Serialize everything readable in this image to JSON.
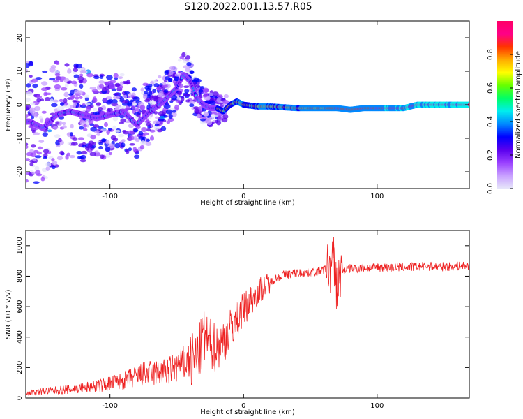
{
  "title": "S120.2022.001.13.57.R05",
  "colors": {
    "snr_line": "#ee2222",
    "axis": "#000000",
    "colorbar_stops": [
      "#e6e6fa",
      "#c8a0ff",
      "#9a40ff",
      "#5a00ee",
      "#0000ff",
      "#0088ff",
      "#00eeee",
      "#00ff66",
      "#66ff00",
      "#ffff00",
      "#ffaa00",
      "#ff3300",
      "#ff0088",
      "#ff0066"
    ]
  },
  "chart_data": [
    {
      "type": "heatmap",
      "title": "",
      "xlabel": "Height of straight line (km)",
      "ylabel": "Frequency (Hz)",
      "xlim": [
        -163,
        169
      ],
      "ylim": [
        -25,
        25
      ],
      "x_ticks": [
        -100,
        0,
        100
      ],
      "y_ticks": [
        -20,
        -10,
        0,
        10,
        20
      ],
      "colorbar": {
        "label": "Normalized spectral amplitude",
        "range": [
          0,
          1
        ],
        "ticks": [
          "0.0",
          "0.2",
          "0.4",
          "0.6",
          "0.8"
        ]
      },
      "ridge": {
        "x": [
          -160,
          -150,
          -140,
          -130,
          -120,
          -110,
          -100,
          -90,
          -80,
          -75,
          -70,
          -60,
          -50,
          -45,
          -40,
          -35,
          -30,
          -25,
          -20,
          -15,
          -10,
          -5,
          0,
          10,
          20,
          40,
          60,
          70,
          80,
          90,
          100,
          110,
          120,
          130,
          140,
          150,
          160,
          168
        ],
        "y": [
          -5,
          -7,
          -3,
          -2,
          -3,
          -4,
          -3,
          -2,
          -6,
          -4,
          -2,
          1,
          5,
          9,
          7,
          2,
          0,
          -1,
          -1,
          -2,
          0,
          1,
          0,
          -0.5,
          -0.5,
          -1,
          -1,
          -1,
          -1.5,
          -1,
          -1,
          -1,
          -1,
          0,
          0,
          0,
          0,
          0
        ]
      }
    },
    {
      "type": "line",
      "title": "",
      "xlabel": "Height of straight line (km)",
      "ylabel": "SNR (10 * v/v)",
      "xlim": [
        -163,
        169
      ],
      "ylim": [
        0,
        1100
      ],
      "x_ticks": [
        -100,
        0,
        100
      ],
      "y_ticks": [
        0,
        200,
        400,
        600,
        800,
        1000
      ],
      "series": [
        {
          "x": [
            -163,
            -150,
            -130,
            -110,
            -90,
            -75,
            -60,
            -50,
            -40,
            -35,
            -32,
            -30,
            -28,
            -25,
            -20,
            -15,
            -10,
            -5,
            0,
            5,
            10,
            15,
            20,
            25,
            30,
            40,
            50,
            55,
            60,
            65,
            68,
            70,
            72,
            75,
            80,
            90,
            100,
            110,
            120,
            130,
            140,
            150,
            160,
            169
          ],
          "y": [
            30,
            40,
            50,
            70,
            100,
            140,
            150,
            180,
            220,
            250,
            330,
            400,
            380,
            350,
            330,
            380,
            450,
            520,
            580,
            640,
            690,
            730,
            760,
            790,
            810,
            820,
            825,
            830,
            840,
            860,
            900,
            700,
            820,
            840,
            850,
            855,
            860,
            855,
            860,
            862,
            865,
            862,
            865,
            870
          ]
        }
      ]
    }
  ]
}
